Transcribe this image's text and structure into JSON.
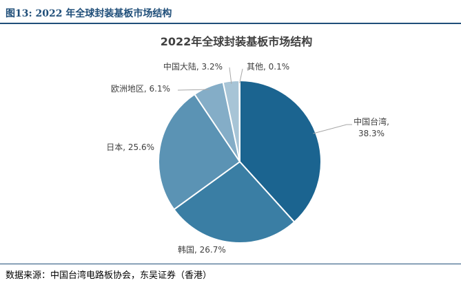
{
  "figure": {
    "label": "图13:  2022 年全球封装基板市场结构",
    "source": "数据来源：中国台湾电路板协会，东吴证券（香港）"
  },
  "chart_data": {
    "type": "pie",
    "title": "2022年全球封装基板市场结构",
    "slices": [
      {
        "name": "中国台湾",
        "value": 38.3,
        "label": "38.3%",
        "color": "#1b6490"
      },
      {
        "name": "韩国",
        "value": 26.7,
        "label": "26.7%",
        "color": "#3a7ea4"
      },
      {
        "name": "日本",
        "value": 25.6,
        "label": "25.6%",
        "color": "#5b93b4"
      },
      {
        "name": "欧洲地区",
        "value": 6.1,
        "label": "6.1%",
        "color": "#84adc7"
      },
      {
        "name": "中国大陆",
        "value": 3.2,
        "label": "3.2%",
        "color": "#a7c4d6"
      },
      {
        "name": "其他",
        "value": 0.1,
        "label": "0.1%",
        "color": "#c4d6e3"
      }
    ]
  }
}
